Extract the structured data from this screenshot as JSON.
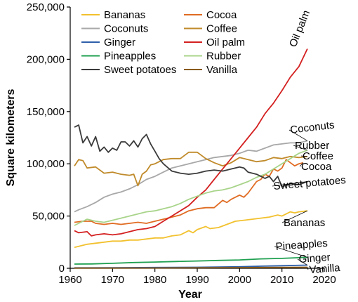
{
  "chart_data": {
    "type": "line",
    "title": "",
    "xlabel": "Year",
    "ylabel": "Square kilometers",
    "xlim": [
      1960,
      2020
    ],
    "ylim": [
      0,
      250000
    ],
    "x_ticks": [
      1960,
      1970,
      1980,
      1990,
      2000,
      2010,
      2020
    ],
    "y_ticks": [
      0,
      50000,
      100000,
      150000,
      200000,
      250000
    ],
    "x_tick_labels": [
      "1960",
      "1970",
      "1980",
      "1990",
      "2000",
      "2010",
      "2020"
    ],
    "y_tick_labels": [
      "0",
      "50,000",
      "100,000",
      "150,000",
      "200,000",
      "250,000"
    ],
    "grid": false,
    "legend_placement": "top-left",
    "legend_order": [
      "Bananas",
      "Cocoa",
      "Coconuts",
      "Coffee",
      "Ginger",
      "Oil palm",
      "Pineapples",
      "Rubber",
      "Sweet potatoes",
      "Vanilla"
    ],
    "series": [
      {
        "name": "Bananas",
        "color": "#f2c12e",
        "end_label": "Bananas",
        "points": [
          [
            1961,
            20000
          ],
          [
            1962,
            21000
          ],
          [
            1964,
            23000
          ],
          [
            1966,
            24000
          ],
          [
            1968,
            25000
          ],
          [
            1970,
            26000
          ],
          [
            1972,
            26000
          ],
          [
            1974,
            27000
          ],
          [
            1976,
            27000
          ],
          [
            1978,
            28000
          ],
          [
            1980,
            29000
          ],
          [
            1982,
            29000
          ],
          [
            1984,
            31000
          ],
          [
            1986,
            32000
          ],
          [
            1988,
            36000
          ],
          [
            1989,
            34000
          ],
          [
            1990,
            37000
          ],
          [
            1992,
            40000
          ],
          [
            1993,
            38000
          ],
          [
            1995,
            39000
          ],
          [
            1997,
            42000
          ],
          [
            1999,
            45000
          ],
          [
            2001,
            46000
          ],
          [
            2003,
            47000
          ],
          [
            2005,
            48000
          ],
          [
            2007,
            49000
          ],
          [
            2009,
            51000
          ],
          [
            2010,
            50000
          ],
          [
            2011,
            52000
          ],
          [
            2012,
            54000
          ],
          [
            2013,
            53000
          ],
          [
            2014,
            54000
          ],
          [
            2016,
            55000
          ]
        ]
      },
      {
        "name": "Cocoa",
        "color": "#e06b22",
        "end_label": "Cocoa",
        "points": [
          [
            1961,
            44000
          ],
          [
            1963,
            45000
          ],
          [
            1965,
            45000
          ],
          [
            1966,
            43000
          ],
          [
            1968,
            42000
          ],
          [
            1970,
            43000
          ],
          [
            1972,
            42000
          ],
          [
            1974,
            43000
          ],
          [
            1976,
            44000
          ],
          [
            1978,
            43000
          ],
          [
            1980,
            45000
          ],
          [
            1982,
            47000
          ],
          [
            1984,
            49000
          ],
          [
            1986,
            51000
          ],
          [
            1988,
            55000
          ],
          [
            1990,
            57000
          ],
          [
            1992,
            58000
          ],
          [
            1994,
            58000
          ],
          [
            1996,
            65000
          ],
          [
            1997,
            63000
          ],
          [
            1998,
            66000
          ],
          [
            2000,
            70000
          ],
          [
            2001,
            68000
          ],
          [
            2002,
            72000
          ],
          [
            2004,
            83000
          ],
          [
            2005,
            85000
          ],
          [
            2006,
            90000
          ],
          [
            2007,
            88000
          ],
          [
            2008,
            95000
          ],
          [
            2009,
            93000
          ],
          [
            2010,
            96000
          ],
          [
            2011,
            104000
          ],
          [
            2012,
            101000
          ],
          [
            2013,
            98000
          ],
          [
            2014,
            100000
          ],
          [
            2015,
            101000
          ]
        ]
      },
      {
        "name": "Coconuts",
        "color": "#a8a8a8",
        "end_label": "Coconuts",
        "points": [
          [
            1961,
            54000
          ],
          [
            1962,
            56000
          ],
          [
            1964,
            59000
          ],
          [
            1966,
            63000
          ],
          [
            1968,
            68000
          ],
          [
            1970,
            71000
          ],
          [
            1972,
            73000
          ],
          [
            1974,
            76000
          ],
          [
            1976,
            80000
          ],
          [
            1978,
            85000
          ],
          [
            1980,
            88000
          ],
          [
            1982,
            92000
          ],
          [
            1984,
            96000
          ],
          [
            1986,
            98000
          ],
          [
            1988,
            100000
          ],
          [
            1990,
            102000
          ],
          [
            1992,
            104000
          ],
          [
            1994,
            106000
          ],
          [
            1996,
            107000
          ],
          [
            1998,
            108000
          ],
          [
            2000,
            110000
          ],
          [
            2002,
            113000
          ],
          [
            2004,
            112000
          ],
          [
            2006,
            115000
          ],
          [
            2008,
            118000
          ],
          [
            2010,
            119000
          ],
          [
            2012,
            120000
          ],
          [
            2014,
            120000
          ],
          [
            2016,
            122000
          ]
        ]
      },
      {
        "name": "Coffee",
        "color": "#c08a2a",
        "end_label": "Coffee",
        "points": [
          [
            1961,
            98000
          ],
          [
            1962,
            104000
          ],
          [
            1963,
            103000
          ],
          [
            1964,
            96000
          ],
          [
            1966,
            97000
          ],
          [
            1968,
            91000
          ],
          [
            1970,
            92000
          ],
          [
            1972,
            90000
          ],
          [
            1974,
            89000
          ],
          [
            1975,
            90000
          ],
          [
            1976,
            79000
          ],
          [
            1977,
            90000
          ],
          [
            1978,
            93000
          ],
          [
            1979,
            99000
          ],
          [
            1980,
            100000
          ],
          [
            1982,
            104000
          ],
          [
            1984,
            105000
          ],
          [
            1986,
            105000
          ],
          [
            1988,
            111000
          ],
          [
            1990,
            111000
          ],
          [
            1992,
            105000
          ],
          [
            1994,
            101000
          ],
          [
            1996,
            98000
          ],
          [
            1998,
            101000
          ],
          [
            2000,
            106000
          ],
          [
            2002,
            104000
          ],
          [
            2004,
            102000
          ],
          [
            2006,
            103000
          ],
          [
            2008,
            106000
          ],
          [
            2010,
            105000
          ],
          [
            2012,
            107000
          ],
          [
            2014,
            106000
          ],
          [
            2016,
            107000
          ]
        ]
      },
      {
        "name": "Ginger",
        "color": "#2e5fa8",
        "end_label": "",
        "points": [
          [
            1961,
            500
          ],
          [
            1970,
            600
          ],
          [
            1980,
            800
          ],
          [
            1990,
            1000
          ],
          [
            2000,
            1500
          ],
          [
            2005,
            2000
          ],
          [
            2010,
            2500
          ],
          [
            2016,
            3000
          ]
        ]
      },
      {
        "name": "Oil palm",
        "color": "#d42020",
        "end_label": "Oil palm",
        "points": [
          [
            1961,
            36000
          ],
          [
            1962,
            34000
          ],
          [
            1964,
            35000
          ],
          [
            1965,
            31000
          ],
          [
            1966,
            32000
          ],
          [
            1968,
            33000
          ],
          [
            1970,
            32000
          ],
          [
            1972,
            33000
          ],
          [
            1974,
            35000
          ],
          [
            1976,
            37000
          ],
          [
            1978,
            38000
          ],
          [
            1980,
            40000
          ],
          [
            1982,
            45000
          ],
          [
            1984,
            50000
          ],
          [
            1986,
            55000
          ],
          [
            1988,
            60000
          ],
          [
            1990,
            68000
          ],
          [
            1992,
            75000
          ],
          [
            1994,
            85000
          ],
          [
            1996,
            95000
          ],
          [
            1998,
            105000
          ],
          [
            2000,
            115000
          ],
          [
            2002,
            125000
          ],
          [
            2004,
            135000
          ],
          [
            2006,
            148000
          ],
          [
            2008,
            158000
          ],
          [
            2010,
            170000
          ],
          [
            2012,
            183000
          ],
          [
            2014,
            193000
          ],
          [
            2016,
            210000
          ]
        ]
      },
      {
        "name": "Pineapples",
        "color": "#1fa050",
        "end_label": "Pineapples",
        "points": [
          [
            1961,
            4000
          ],
          [
            1965,
            4200
          ],
          [
            1970,
            4800
          ],
          [
            1975,
            5500
          ],
          [
            1980,
            6000
          ],
          [
            1985,
            6500
          ],
          [
            1990,
            7000
          ],
          [
            1995,
            7500
          ],
          [
            2000,
            8000
          ],
          [
            2005,
            9000
          ],
          [
            2010,
            9500
          ],
          [
            2016,
            10500
          ]
        ]
      },
      {
        "name": "Rubber",
        "color": "#a8d48a",
        "end_label": "Rubber",
        "points": [
          [
            1961,
            41000
          ],
          [
            1962,
            43000
          ],
          [
            1964,
            47000
          ],
          [
            1966,
            45000
          ],
          [
            1968,
            44000
          ],
          [
            1970,
            46000
          ],
          [
            1972,
            48000
          ],
          [
            1974,
            50000
          ],
          [
            1976,
            52000
          ],
          [
            1978,
            54000
          ],
          [
            1980,
            55000
          ],
          [
            1982,
            57000
          ],
          [
            1984,
            59000
          ],
          [
            1986,
            62000
          ],
          [
            1988,
            66000
          ],
          [
            1990,
            69000
          ],
          [
            1992,
            72000
          ],
          [
            1994,
            74000
          ],
          [
            1996,
            75000
          ],
          [
            1998,
            77000
          ],
          [
            2000,
            80000
          ],
          [
            2002,
            83000
          ],
          [
            2004,
            87000
          ],
          [
            2006,
            90000
          ],
          [
            2008,
            95000
          ],
          [
            2010,
            100000
          ],
          [
            2012,
            105000
          ],
          [
            2014,
            110000
          ],
          [
            2016,
            113000
          ]
        ]
      },
      {
        "name": "Sweet potatoes",
        "color": "#3a3a3a",
        "end_label": "Sweet potatoes",
        "points": [
          [
            1961,
            135000
          ],
          [
            1962,
            137000
          ],
          [
            1963,
            120000
          ],
          [
            1964,
            126000
          ],
          [
            1965,
            117000
          ],
          [
            1966,
            126000
          ],
          [
            1967,
            112000
          ],
          [
            1968,
            116000
          ],
          [
            1969,
            111000
          ],
          [
            1970,
            115000
          ],
          [
            1971,
            113000
          ],
          [
            1972,
            121000
          ],
          [
            1973,
            121000
          ],
          [
            1974,
            117000
          ],
          [
            1975,
            122000
          ],
          [
            1976,
            116000
          ],
          [
            1977,
            124000
          ],
          [
            1978,
            128000
          ],
          [
            1979,
            119000
          ],
          [
            1980,
            112000
          ],
          [
            1981,
            105000
          ],
          [
            1982,
            100000
          ],
          [
            1984,
            93000
          ],
          [
            1986,
            91000
          ],
          [
            1988,
            90000
          ],
          [
            1990,
            91000
          ],
          [
            1992,
            93000
          ],
          [
            1994,
            94000
          ],
          [
            1996,
            93000
          ],
          [
            1998,
            95000
          ],
          [
            2000,
            97000
          ],
          [
            2001,
            96000
          ],
          [
            2002,
            92000
          ],
          [
            2004,
            90000
          ],
          [
            2006,
            86000
          ],
          [
            2007,
            88000
          ],
          [
            2008,
            83000
          ],
          [
            2009,
            88000
          ],
          [
            2010,
            78000
          ],
          [
            2012,
            81000
          ],
          [
            2014,
            80000
          ],
          [
            2016,
            83000
          ]
        ]
      },
      {
        "name": "Vanilla",
        "color": "#8a5a1a",
        "end_label": "Vanilla",
        "points": [
          [
            1961,
            200
          ],
          [
            1980,
            300
          ],
          [
            2000,
            700
          ],
          [
            2016,
            1000
          ]
        ]
      }
    ],
    "end_labels_extra": [
      {
        "text": "Ginger",
        "series": "Ginger"
      }
    ]
  }
}
